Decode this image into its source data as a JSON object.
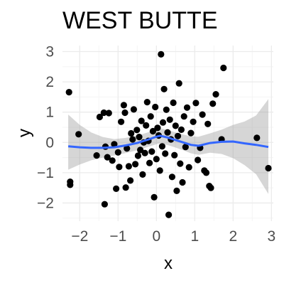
{
  "chart_data": {
    "type": "scatter",
    "title": "WEST BUTTE",
    "xlabel": "x",
    "ylabel": "y",
    "xlim": [
      -2.45,
      3.05
    ],
    "ylim": [
      -2.6,
      3.2
    ],
    "x_ticks": [
      -2,
      -1,
      0,
      1,
      2,
      3
    ],
    "y_ticks": [
      -2,
      -1,
      0,
      1,
      2,
      3
    ],
    "grid": true,
    "points": [
      {
        "x": -2.28,
        "y": 1.66
      },
      {
        "x": -2.25,
        "y": -1.3
      },
      {
        "x": -2.25,
        "y": -1.4
      },
      {
        "x": -2.03,
        "y": 0.27
      },
      {
        "x": -1.56,
        "y": -0.43
      },
      {
        "x": -1.48,
        "y": 0.84
      },
      {
        "x": -1.37,
        "y": 0.98
      },
      {
        "x": -1.35,
        "y": -2.04
      },
      {
        "x": -1.33,
        "y": -0.14
      },
      {
        "x": -1.28,
        "y": -0.49
      },
      {
        "x": -1.24,
        "y": 0.97
      },
      {
        "x": -1.15,
        "y": -0.6
      },
      {
        "x": -1.1,
        "y": -0.06
      },
      {
        "x": -1.05,
        "y": -1.53
      },
      {
        "x": -1.0,
        "y": -0.33
      },
      {
        "x": -0.97,
        "y": -0.81
      },
      {
        "x": -0.92,
        "y": 0.68
      },
      {
        "x": -0.85,
        "y": 1.23
      },
      {
        "x": -0.82,
        "y": 0.98
      },
      {
        "x": -0.8,
        "y": -1.49
      },
      {
        "x": -0.77,
        "y": -0.2
      },
      {
        "x": -0.72,
        "y": -0.79
      },
      {
        "x": -0.68,
        "y": -1.26
      },
      {
        "x": -0.66,
        "y": 0.3
      },
      {
        "x": -0.62,
        "y": 0.1
      },
      {
        "x": -0.59,
        "y": 1.09
      },
      {
        "x": -0.55,
        "y": -0.72
      },
      {
        "x": -0.51,
        "y": 0.41
      },
      {
        "x": -0.48,
        "y": -0.44
      },
      {
        "x": -0.45,
        "y": 0.18
      },
      {
        "x": -0.42,
        "y": -0.25
      },
      {
        "x": -0.39,
        "y": 0.71
      },
      {
        "x": -0.36,
        "y": -1.06
      },
      {
        "x": -0.33,
        "y": 0.0
      },
      {
        "x": -0.3,
        "y": -0.35
      },
      {
        "x": -0.27,
        "y": 0.56
      },
      {
        "x": -0.24,
        "y": 1.33
      },
      {
        "x": -0.21,
        "y": 0.05
      },
      {
        "x": -0.18,
        "y": -0.68
      },
      {
        "x": -0.15,
        "y": 0.86
      },
      {
        "x": -0.12,
        "y": -0.3
      },
      {
        "x": -0.09,
        "y": 0.37
      },
      {
        "x": -0.06,
        "y": -1.81
      },
      {
        "x": -0.03,
        "y": 1.17
      },
      {
        "x": 0.0,
        "y": -0.55
      },
      {
        "x": 0.03,
        "y": 0.48
      },
      {
        "x": 0.06,
        "y": 0.23
      },
      {
        "x": 0.09,
        "y": -0.93
      },
      {
        "x": 0.12,
        "y": 2.91
      },
      {
        "x": 0.15,
        "y": -0.13
      },
      {
        "x": 0.17,
        "y": 0.66
      },
      {
        "x": 0.2,
        "y": 1.76
      },
      {
        "x": 0.23,
        "y": -0.37
      },
      {
        "x": 0.26,
        "y": 1.08
      },
      {
        "x": 0.29,
        "y": 0.33
      },
      {
        "x": 0.32,
        "y": -2.39
      },
      {
        "x": 0.35,
        "y": 0.75
      },
      {
        "x": 0.38,
        "y": 0.1
      },
      {
        "x": 0.41,
        "y": -1.14
      },
      {
        "x": 0.44,
        "y": 1.31
      },
      {
        "x": 0.47,
        "y": -0.42
      },
      {
        "x": 0.5,
        "y": 0.55
      },
      {
        "x": 0.53,
        "y": -1.6
      },
      {
        "x": 0.56,
        "y": 0.21
      },
      {
        "x": 0.59,
        "y": 1.95
      },
      {
        "x": 0.62,
        "y": -0.7
      },
      {
        "x": 0.65,
        "y": 0.42
      },
      {
        "x": 0.68,
        "y": -1.32
      },
      {
        "x": 0.72,
        "y": 0.86
      },
      {
        "x": 0.76,
        "y": -0.15
      },
      {
        "x": 0.8,
        "y": 1.15
      },
      {
        "x": 0.85,
        "y": -0.82
      },
      {
        "x": 0.9,
        "y": 0.31
      },
      {
        "x": 0.96,
        "y": 0.68
      },
      {
        "x": 1.03,
        "y": 1.3
      },
      {
        "x": 1.08,
        "y": -0.58
      },
      {
        "x": 1.14,
        "y": -0.18
      },
      {
        "x": 1.2,
        "y": 0.92
      },
      {
        "x": 1.25,
        "y": -0.93
      },
      {
        "x": 1.3,
        "y": -1.0
      },
      {
        "x": 1.34,
        "y": 0.61
      },
      {
        "x": 1.38,
        "y": -1.44
      },
      {
        "x": 1.42,
        "y": -1.5
      },
      {
        "x": 1.47,
        "y": 1.28
      },
      {
        "x": 1.55,
        "y": 1.59
      },
      {
        "x": 1.7,
        "y": 0.1
      },
      {
        "x": 1.75,
        "y": 2.46
      },
      {
        "x": 2.62,
        "y": 0.15
      },
      {
        "x": 2.92,
        "y": -0.85
      }
    ],
    "smooth": {
      "x": [
        -2.3,
        -2.0,
        -1.7,
        -1.4,
        -1.1,
        -0.8,
        -0.5,
        -0.2,
        0.0,
        0.1,
        0.3,
        0.5,
        0.7,
        0.9,
        1.1,
        1.4,
        1.7,
        2.0,
        2.3,
        2.6,
        2.92
      ],
      "y": [
        -0.13,
        -0.16,
        -0.18,
        -0.18,
        -0.16,
        -0.1,
        -0.02,
        0.1,
        0.19,
        0.22,
        0.16,
        0.08,
        0.0,
        -0.08,
        -0.11,
        -0.02,
        0.02,
        0.03,
        -0.03,
        -0.08,
        -0.15
      ],
      "ymin": [
        -0.9,
        -0.73,
        -0.59,
        -0.5,
        -0.43,
        -0.35,
        -0.26,
        -0.14,
        -0.06,
        -0.03,
        -0.09,
        -0.17,
        -0.26,
        -0.36,
        -0.41,
        -0.34,
        -0.38,
        -0.52,
        -0.75,
        -1.05,
        -1.7
      ],
      "ymax": [
        0.92,
        0.58,
        0.33,
        0.18,
        0.11,
        0.15,
        0.22,
        0.34,
        0.45,
        0.47,
        0.41,
        0.33,
        0.26,
        0.2,
        0.19,
        0.3,
        0.42,
        0.58,
        0.69,
        0.89,
        1.43
      ]
    },
    "colors": {
      "point": "#000000",
      "smooth_line": "#3366FF",
      "ribbon": "#999999",
      "grid_major": "#EBEBEB",
      "grid_minor": "#F5F5F5"
    }
  }
}
